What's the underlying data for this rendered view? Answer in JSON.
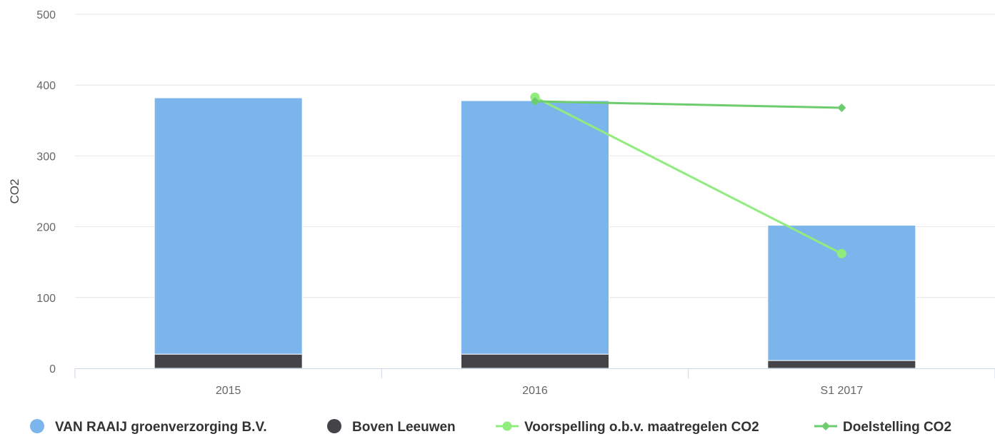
{
  "chart_data": {
    "type": "bar",
    "stacked": true,
    "categories": [
      "2015",
      "2016",
      "S1 2017"
    ],
    "ylabel": "CO2",
    "xlabel": "",
    "ylim": [
      0,
      500
    ],
    "yticks": [
      0,
      100,
      200,
      300,
      400,
      500
    ],
    "grid": true,
    "legend_position": "bottom",
    "bar_series": [
      {
        "name": "Boven Leeuwen",
        "color": "#434348",
        "values": [
          20,
          20,
          11
        ]
      },
      {
        "name": "VAN RAAIJ groenverzorging B.V.",
        "color": "#7cb5ec",
        "values": [
          362,
          358,
          191
        ]
      }
    ],
    "line_series": [
      {
        "name": "Voorspelling o.b.v. maatregelen CO2",
        "color": "#90ed7d",
        "marker": "circle",
        "points": [
          {
            "category": "2016",
            "value": 383
          },
          {
            "category": "S1 2017",
            "value": 162
          }
        ]
      },
      {
        "name": "Doelstelling CO2",
        "color": "#6dcc6d",
        "marker": "diamond",
        "points": [
          {
            "category": "2016",
            "value": 377
          },
          {
            "category": "S1 2017",
            "value": 368
          }
        ]
      }
    ],
    "legend": [
      {
        "name": "VAN RAAIJ groenverzorging B.V.",
        "symbol": "circle",
        "color": "#7cb5ec"
      },
      {
        "name": "Boven Leeuwen",
        "symbol": "circle",
        "color": "#434348"
      },
      {
        "name": "Voorspelling o.b.v. maatregelen CO2",
        "symbol": "line-circle",
        "color": "#90ed7d"
      },
      {
        "name": "Doelstelling CO2",
        "symbol": "line-diamond",
        "color": "#6dcc6d"
      }
    ]
  }
}
